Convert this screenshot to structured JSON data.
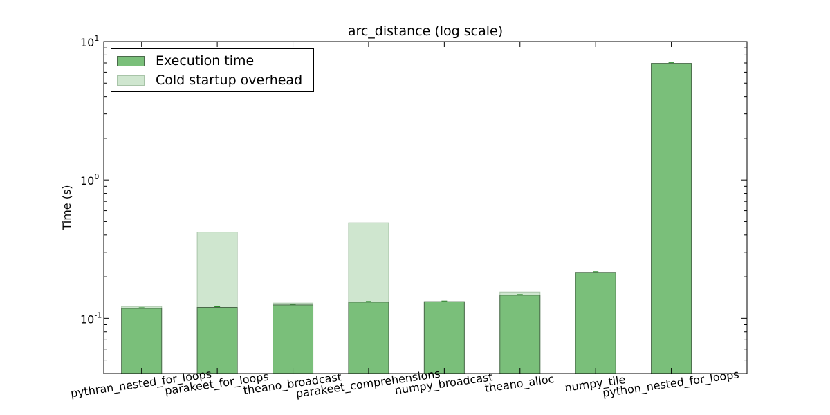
{
  "chart_data": {
    "type": "bar",
    "title": "arc_distance (log scale)",
    "xlabel": "",
    "ylabel": "Time (s)",
    "y_scale": "log",
    "ylim": [
      0.04,
      10
    ],
    "y_ticks": [
      {
        "value": 0.1,
        "base": "10",
        "exp": "-1"
      },
      {
        "value": 1,
        "base": "10",
        "exp": "0"
      },
      {
        "value": 10,
        "base": "10",
        "exp": "1"
      }
    ],
    "categories": [
      "pythran_nested_for_loops",
      "parakeet_for_loops",
      "theano_broadcast",
      "parakeet_comprehensions",
      "numpy_broadcast",
      "theano_alloc",
      "numpy_tile",
      "python_nested_for_loops"
    ],
    "series": [
      {
        "name": "Execution time",
        "color": "#7abf7a",
        "values": [
          0.118,
          0.12,
          0.125,
          0.131,
          0.132,
          0.147,
          0.215,
          6.95
        ]
      },
      {
        "name": "Cold startup overhead",
        "color": "#cfe6cf",
        "values": [
          0.122,
          0.42,
          0.129,
          0.49,
          0.132,
          0.155,
          0.215,
          6.95
        ]
      }
    ],
    "legend_position": "top-left",
    "grid": false
  }
}
